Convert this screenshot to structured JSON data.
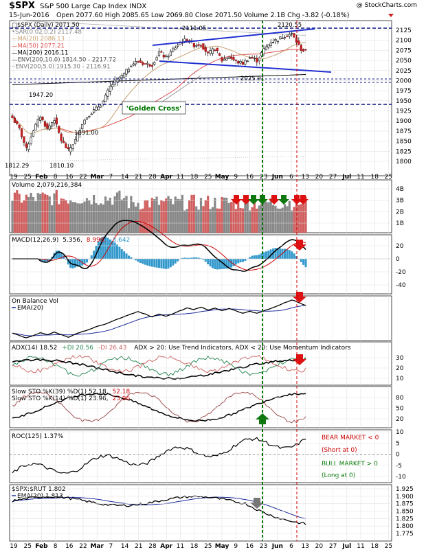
{
  "header": {
    "symbol": "$SPX",
    "name": "S&P 500 Large Cap Index INDX",
    "copyright": "@ StockCharts.com",
    "date": "15-Jun-2016",
    "quote": "Open 2077.60  High 2085.65  Low 2069.80  Close 2071.50  Volume 2.1B  Chg -3.82 (-0.18%)"
  },
  "colors": {
    "frame": "#444444",
    "grid": "#cccccc",
    "ma20": "#c8a070",
    "ma50": "#e05050",
    "ma200": "#000000",
    "env200_10": "#b0b0b0",
    "env200_5": "#c0c0c0",
    "trend": "#1f2fd0",
    "support_dash": "#0a1480",
    "green_vline": "#007700",
    "red_vline": "#cc0000",
    "up_candle": "#ffffff",
    "down_candle": "#cc2222",
    "vol_up": "#888888",
    "vol_down": "#d06060",
    "macd_hist": "#3399cc",
    "ema_line": "#1b2a9a",
    "pdi": "#2e8b57",
    "mdi": "#cc6666",
    "sto_k": "#000000",
    "sto_d": "#cc0000",
    "sto_slow": "#a05050",
    "bear_text": "#cc0000",
    "bull_text": "#007700",
    "arrow_red": "#dd1111",
    "arrow_green": "#117711",
    "arrow_gray": "#777777"
  },
  "x_axis_labels": [
    "19",
    "25",
    "Feb",
    "8",
    "16",
    "22",
    "Mar",
    "7",
    "14",
    "21",
    "28",
    "Apr",
    "11",
    "18",
    "25",
    "May",
    "9",
    "16",
    "23",
    "Jun",
    "6",
    "13",
    "20",
    "27",
    "Jul",
    "11",
    "18",
    "25"
  ],
  "x_axis_label_bold": [
    "Feb",
    "Mar",
    "Apr",
    "May",
    "Jun",
    "Jul"
  ],
  "price_panel": {
    "legend": [
      {
        "text": "□$SPX (Daily) 2071.50",
        "color": "#000000"
      },
      {
        "text": "•SAR(0.02,0.2) 2117.48",
        "color": "#888888"
      },
      {
        "text": "—MA(20) 2086.13",
        "color": "#c8a070"
      },
      {
        "text": "—MA(50) 2077.21",
        "color": "#e05050"
      },
      {
        "text": "—MA(200) 2016.11",
        "color": "#000000"
      },
      {
        "text": "—ENV(200,10.0) 1814.50 - 2217.72",
        "color": "#555555"
      },
      {
        "text": "··ENV(200,5.0) 1915.30 - 2116.91",
        "color": "#777777"
      }
    ],
    "y_ticks": [
      "2125",
      "2100",
      "2075",
      "2050",
      "2025",
      "2000",
      "1975",
      "1950",
      "1925",
      "1900",
      "1875",
      "1850",
      "1825",
      "1800"
    ],
    "annotations": [
      "1812.29",
      "1810.10",
      "1947.20",
      "1891.00",
      "2111.05",
      "2120.55",
      "2025.91"
    ],
    "golden_cross_label": "'Golden Cross'"
  },
  "volume_panel": {
    "legend": "Volume 2,079,216,384",
    "y_ticks": [
      "4B",
      "3B",
      "2B",
      "1B"
    ]
  },
  "macd_panel": {
    "legend_name": "MACD(12,26,9)",
    "legend_v1": "5.356,",
    "legend_v2": "8.998,",
    "legend_v3": "-3.642",
    "y_ticks": [
      "20",
      "0",
      "-20",
      "-40"
    ]
  },
  "obv_panel": {
    "legend1": "On Balance Vol",
    "legend2": "EMA(20)"
  },
  "adx_panel": {
    "legend_a": "ADX(14) 18.52",
    "legend_b": "+DI 20.56",
    "legend_c": "-DI 26.43",
    "legend_note": "ADX > 20: Use Trend Indicators, ADX < 20: Use Momentum Indicators",
    "y_ticks": [
      "30",
      "20",
      "10"
    ]
  },
  "sto_panel": {
    "legend1a": "Slow STO %K(39) %D(1) 52.18,",
    "legend1b": "52.18",
    "legend2a": "Slow STO %K(14) %D(1) 23.96,",
    "legend2b": "23.96",
    "y_ticks": [
      "80",
      "50",
      "20"
    ]
  },
  "roc_panel": {
    "legend": "ROC(125) 1.37%",
    "bear_1": "BEAR MARKET < 0",
    "bear_2": "(Short at 0)",
    "bull_1": "BULL MARKET > 0",
    "bull_2": "(Long at 0)",
    "y_ticks": [
      "10",
      "5",
      "0",
      "-5",
      "-10"
    ]
  },
  "ratio_panel": {
    "legend": "$SPX:$RUT 1.802",
    "ema_legend": "EMA(20) 1.813",
    "y_ticks": [
      "1.925",
      "1.900",
      "1.875",
      "1.850",
      "1.825",
      "1.800",
      "1.775"
    ]
  }
}
